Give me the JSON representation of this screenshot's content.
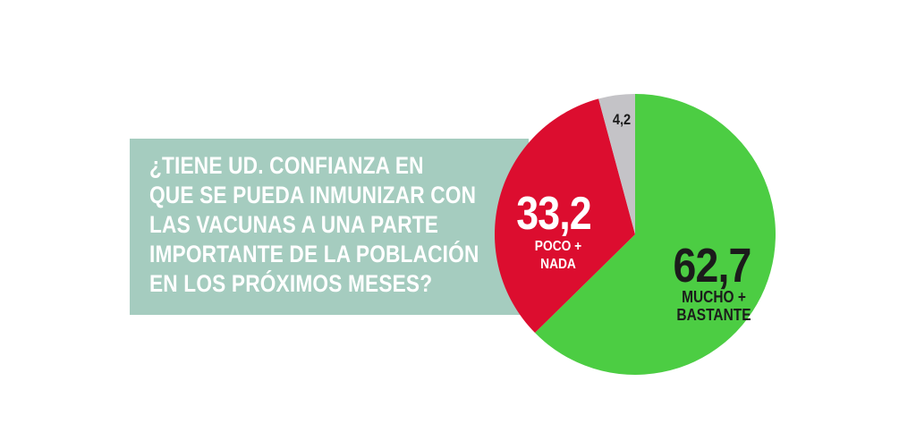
{
  "page": {
    "background": "#ffffff"
  },
  "question_box": {
    "background": "#a5ccbf",
    "text_color": "#ffffff",
    "lines": [
      "¿TIENE UD. CONFIANZA EN",
      "QUE SE PUEDA INMUNIZAR CON",
      "LAS VACUNAS A UNA PARTE",
      "IMPORTANTE DE LA POBLACIÓN",
      "EN LOS PRÓXIMOS MESES?"
    ]
  },
  "chart_data": {
    "type": "pie",
    "title": "",
    "values_are_percent": true,
    "start_angle_deg": 0,
    "direction": "clockwise",
    "legend": "none",
    "segments": [
      {
        "slug": "mucho-bastante",
        "label": "MUCHO + BASTANTE",
        "label_lines": [
          "MUCHO +",
          "BASTANTE"
        ],
        "value": 62.7,
        "display_value": "62,7",
        "color": "#4ccd43",
        "label_color": "#1b1b1b"
      },
      {
        "slug": "poco-nada",
        "label": "POCO + NADA",
        "label_lines": [
          "POCO +",
          "NADA"
        ],
        "value": 33.2,
        "display_value": "33,2",
        "color": "#dc0d2f",
        "label_color": "#ffffff"
      },
      {
        "slug": "resto",
        "label": "",
        "label_lines": [
          "",
          ""
        ],
        "value": 4.2,
        "display_value": "4,2",
        "color": "#c4c3c7",
        "label_color": "#1b1b1b"
      }
    ]
  }
}
